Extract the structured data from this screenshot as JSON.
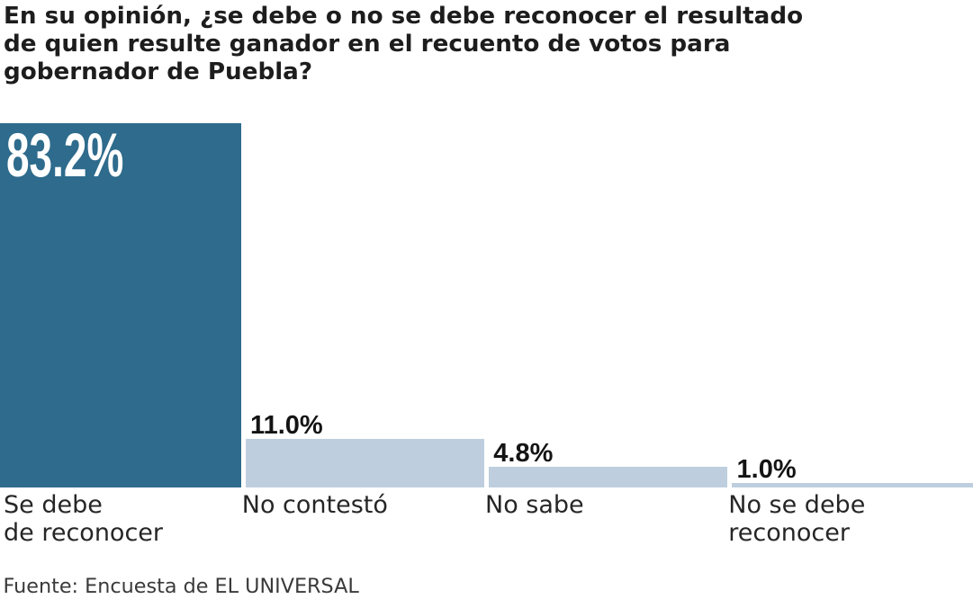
{
  "chart_data": {
    "type": "bar",
    "title": "En su opinión, ¿se debe o no se debe reconocer el resultado de quien resulte ganador en el recuento de votos para gobernador de Puebla?",
    "title_lines": [
      "En su opinión, ¿se debe o no se debe reconocer el resultado",
      "de quien resulte ganador en el recuento de votos para",
      "gobernador de Puebla?"
    ],
    "categories": [
      "Se debe de reconocer",
      "No contestó",
      "No sabe",
      "No se debe reconocer"
    ],
    "category_lines": [
      [
        "Se debe",
        "de reconocer"
      ],
      [
        "No contestó"
      ],
      [
        "No sabe"
      ],
      [
        "No se debe",
        "reconocer"
      ]
    ],
    "values": [
      83.2,
      11.0,
      4.8,
      1.0
    ],
    "value_labels": [
      "83.2%",
      "11.0%",
      "4.8%",
      "1.0%"
    ],
    "source": "Fuente: Encuesta de EL UNIVERSAL",
    "xlabel": "",
    "ylabel": "",
    "grid": false,
    "legend": false,
    "colors": {
      "highlight_bar": "#2e6b8c",
      "bar": "#becede",
      "value_label_on_bar": "#ffffff",
      "value_label": "#141414"
    }
  }
}
